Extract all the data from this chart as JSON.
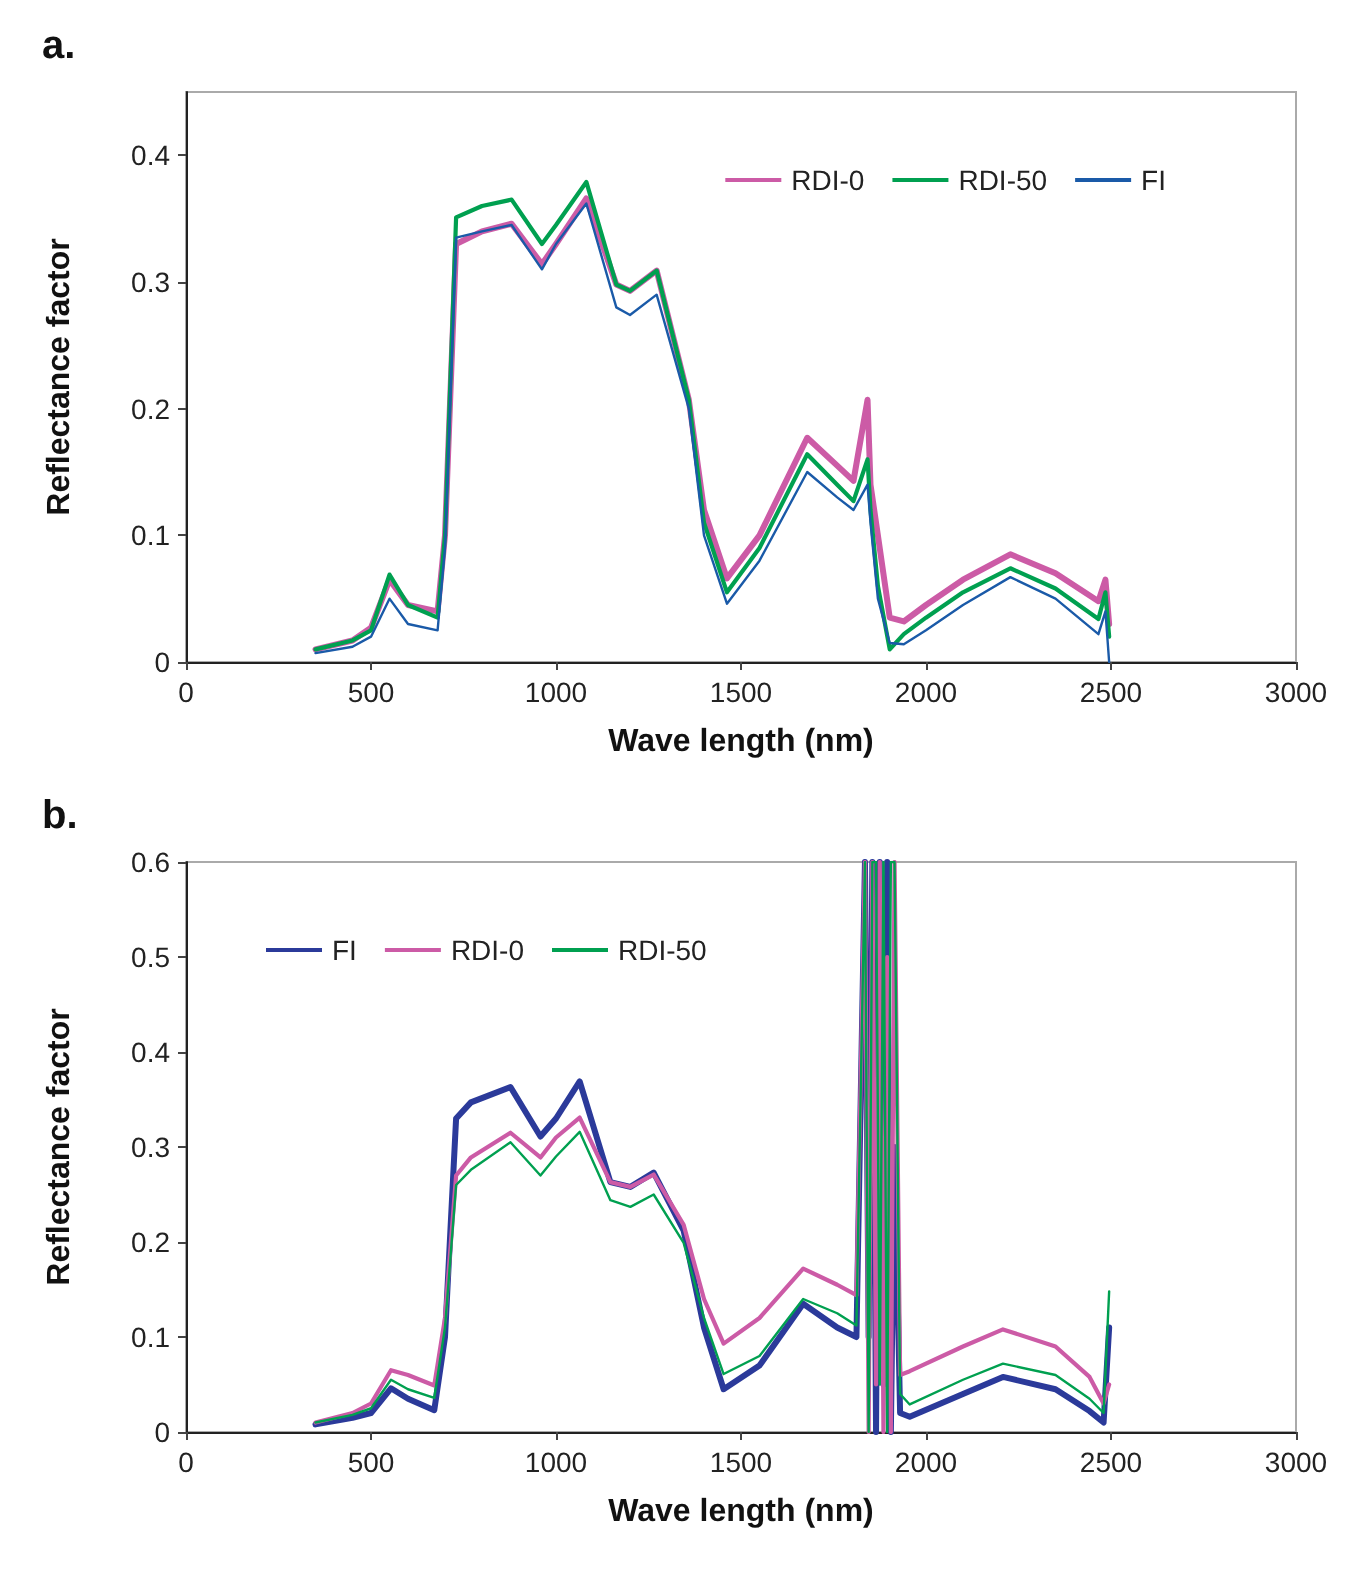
{
  "chart_data": [
    {
      "type": "line",
      "title": "a.",
      "xlabel": "Wave length (nm)",
      "ylabel": "Reflectance factor",
      "xlim": [
        0,
        3000
      ],
      "xticks": [
        0,
        500,
        1000,
        1500,
        2000,
        2500,
        3000
      ],
      "ylim": [
        0,
        0.45
      ],
      "yticks": [
        0,
        0.1,
        0.2,
        0.3,
        0.4
      ],
      "grid": false,
      "legend": "top right",
      "x": [
        350,
        450,
        500,
        550,
        600,
        680,
        700,
        730,
        800,
        880,
        962,
        1000,
        1082,
        1163,
        1200,
        1272,
        1359,
        1400,
        1462,
        1550,
        1679,
        1760,
        1804,
        1842,
        1850,
        1870,
        1902,
        1940,
        2000,
        2100,
        2228,
        2350,
        2466,
        2485,
        2495
      ],
      "series": [
        {
          "name": "RDI-0",
          "color": "#cc5ba6",
          "values": [
            0.01,
            0.017,
            0.027,
            0.065,
            0.045,
            0.04,
            0.1,
            0.33,
            0.34,
            0.346,
            0.314,
            0.33,
            0.366,
            0.298,
            0.293,
            0.309,
            0.207,
            0.12,
            0.066,
            0.1,
            0.177,
            0.155,
            0.143,
            0.207,
            0.14,
            0.1,
            0.035,
            0.032,
            0.045,
            0.065,
            0.085,
            0.07,
            0.048,
            0.065,
            0.03
          ]
        },
        {
          "name": "RDI-50",
          "color": "#00a050",
          "values": [
            0.01,
            0.017,
            0.025,
            0.069,
            0.045,
            0.035,
            0.1,
            0.351,
            0.36,
            0.365,
            0.33,
            0.345,
            0.379,
            0.298,
            0.293,
            0.309,
            0.207,
            0.11,
            0.055,
            0.09,
            0.164,
            0.14,
            0.127,
            0.16,
            0.12,
            0.06,
            0.01,
            0.022,
            0.035,
            0.055,
            0.074,
            0.058,
            0.034,
            0.055,
            0.02
          ]
        },
        {
          "name": "FI",
          "color": "#1a5aa8",
          "values": [
            0.007,
            0.012,
            0.02,
            0.05,
            0.03,
            0.025,
            0.09,
            0.335,
            0.34,
            0.345,
            0.31,
            0.33,
            0.362,
            0.28,
            0.274,
            0.29,
            0.2,
            0.1,
            0.046,
            0.08,
            0.15,
            0.13,
            0.12,
            0.14,
            0.11,
            0.05,
            0.015,
            0.014,
            0.025,
            0.045,
            0.067,
            0.05,
            0.022,
            0.04,
            0.0
          ]
        }
      ]
    },
    {
      "type": "line",
      "title": "b.",
      "xlabel": "Wave length (nm)",
      "ylabel": "Reflectance factor",
      "xlim": [
        0,
        3000
      ],
      "xticks": [
        0,
        500,
        1000,
        1500,
        2000,
        2500,
        3000
      ],
      "ylim": [
        0,
        0.6
      ],
      "yticks": [
        0,
        0.1,
        0.2,
        0.3,
        0.4,
        0.5,
        0.6
      ],
      "grid": false,
      "legend": "top left",
      "x": [
        350,
        450,
        500,
        554,
        600,
        671,
        700,
        730,
        770,
        877,
        958,
        1000,
        1064,
        1147,
        1201,
        1264,
        1345,
        1400,
        1453,
        1550,
        1668,
        1760,
        1812,
        1835,
        1845,
        1855,
        1865,
        1875,
        1885,
        1895,
        1905,
        1915,
        1930,
        1956,
        2100,
        2208,
        2350,
        2442,
        2480,
        2495
      ],
      "series": [
        {
          "name": "FI",
          "color": "#2b3a9a",
          "values": [
            0.008,
            0.015,
            0.02,
            0.046,
            0.035,
            0.023,
            0.1,
            0.33,
            0.347,
            0.363,
            0.311,
            0.33,
            0.369,
            0.263,
            0.258,
            0.273,
            0.212,
            0.11,
            0.045,
            0.07,
            0.135,
            0.11,
            0.1,
            0.6,
            0.1,
            0.6,
            0,
            0.6,
            0.05,
            0.6,
            0,
            0.3,
            0.02,
            0.016,
            0.04,
            0.058,
            0.045,
            0.022,
            0.01,
            0.11
          ]
        },
        {
          "name": "RDI-0",
          "color": "#cc5ba6",
          "values": [
            0.01,
            0.02,
            0.03,
            0.065,
            0.06,
            0.049,
            0.12,
            0.27,
            0.289,
            0.315,
            0.289,
            0.31,
            0.331,
            0.263,
            0.258,
            0.271,
            0.218,
            0.14,
            0.093,
            0.12,
            0.172,
            0.155,
            0.144,
            0.6,
            0,
            0.6,
            0.05,
            0.6,
            0,
            0.5,
            0,
            0.6,
            0.06,
            0.064,
            0.09,
            0.108,
            0.09,
            0.058,
            0.03,
            0.05
          ]
        },
        {
          "name": "RDI-50",
          "color": "#00a050",
          "values": [
            0.01,
            0.018,
            0.025,
            0.055,
            0.045,
            0.036,
            0.11,
            0.26,
            0.276,
            0.305,
            0.27,
            0.29,
            0.316,
            0.244,
            0.237,
            0.25,
            0.199,
            0.12,
            0.061,
            0.08,
            0.14,
            0.125,
            0.112,
            0.6,
            0,
            0.6,
            0.6,
            0.05,
            0.6,
            0,
            0.6,
            0.6,
            0.04,
            0.029,
            0.055,
            0.072,
            0.06,
            0.035,
            0.02,
            0.148
          ]
        }
      ]
    }
  ]
}
